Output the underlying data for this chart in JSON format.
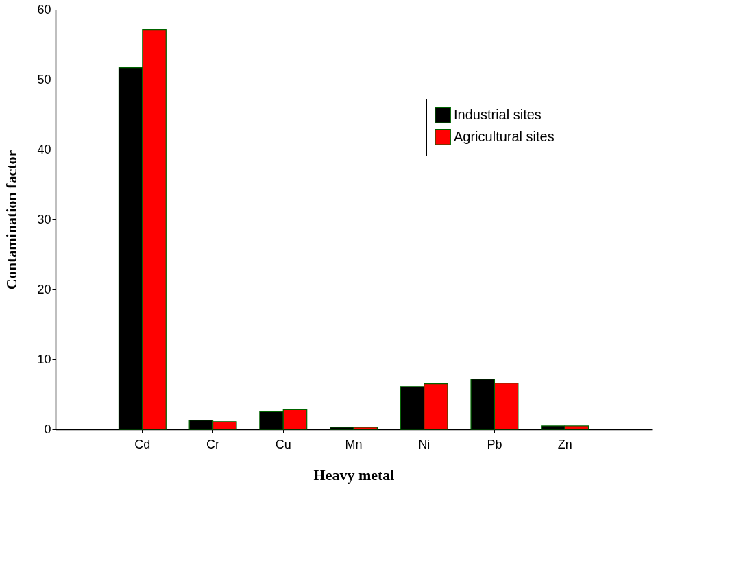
{
  "chart_data": {
    "type": "bar",
    "xlabel": "Heavy metal",
    "ylabel": "Contamination factor",
    "categories": [
      "Cd",
      "Cr",
      "Cu",
      "Mn",
      "Ni",
      "Pb",
      "Zn"
    ],
    "series": [
      {
        "name": "Industrial sites",
        "color": "#000000",
        "values": [
          51.7,
          1.3,
          2.5,
          0.3,
          6.1,
          7.2,
          0.5
        ]
      },
      {
        "name": "Agricultural sites",
        "color": "#ff0000",
        "values": [
          57.1,
          1.1,
          2.8,
          0.3,
          6.5,
          6.6,
          0.5
        ]
      }
    ],
    "ylim": [
      0,
      60
    ],
    "yticks": [
      0,
      10,
      20,
      30,
      40,
      50,
      60
    ],
    "grid": false,
    "legend": "top right"
  }
}
